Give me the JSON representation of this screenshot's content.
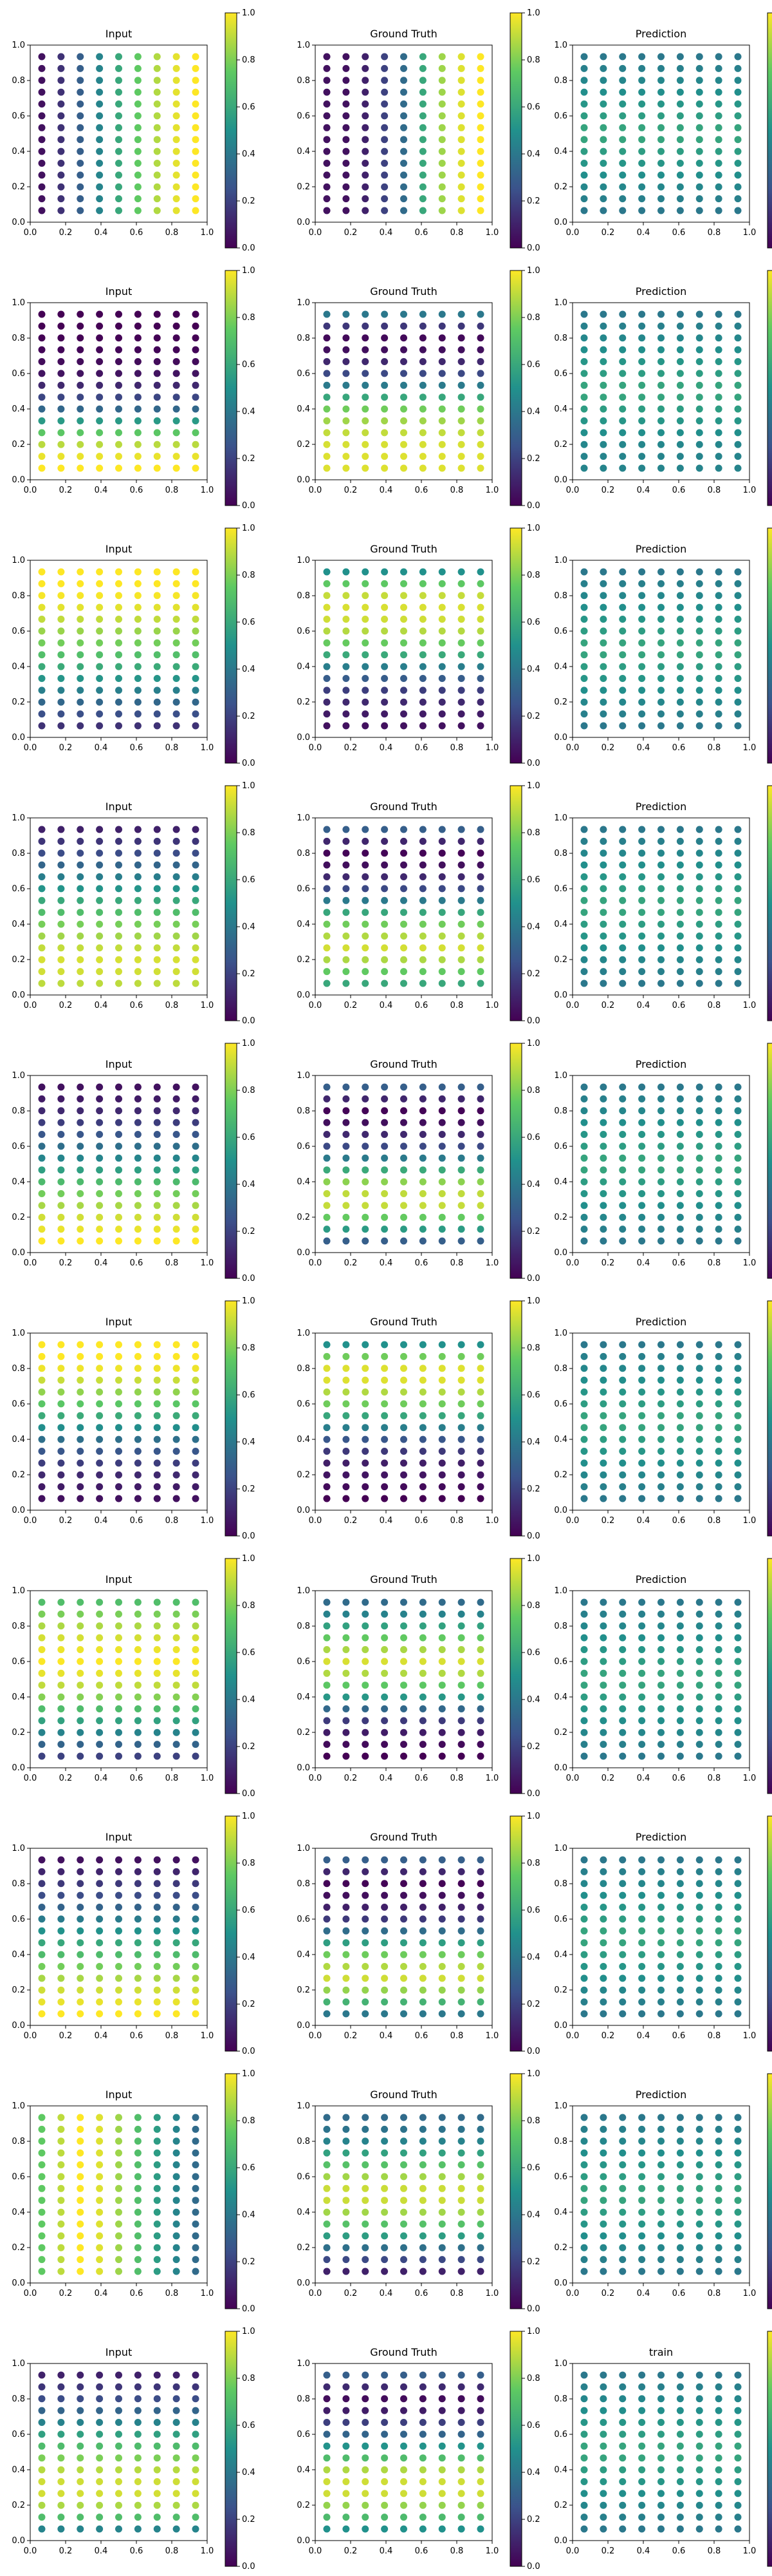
{
  "figure": {
    "rows": 10,
    "columns": 3,
    "colorbar_ticks": [
      "0.0",
      "0.2",
      "0.4",
      "0.6",
      "0.8",
      "1.0"
    ],
    "axis_ticks": [
      "0.0",
      "0.2",
      "0.4",
      "0.6",
      "0.8",
      "1.0"
    ],
    "colormap": [
      "#440154",
      "#3b528b",
      "#21918c",
      "#5ec962",
      "#fde725"
    ]
  },
  "chart_data": [
    {
      "row": 1,
      "panels": [
        {
          "title": "Input",
          "type": "scatter",
          "xlim": [
            0,
            1
          ],
          "ylim": [
            0,
            1
          ],
          "clim": [
            0,
            1
          ],
          "field": {
            "axis": "x",
            "profile": [
              0.05,
              0.15,
              0.3,
              0.45,
              0.6,
              0.75,
              0.88,
              0.96,
              1.0
            ]
          }
        },
        {
          "title": "Ground Truth",
          "type": "scatter",
          "xlim": [
            0,
            1
          ],
          "ylim": [
            0,
            1
          ],
          "clim": [
            0,
            1
          ],
          "field": {
            "axis": "x",
            "profile": [
              0.05,
              0.05,
              0.1,
              0.2,
              0.35,
              0.6,
              0.85,
              0.95,
              1.0
            ]
          }
        },
        {
          "title": "Prediction",
          "type": "scatter",
          "xlim": [
            0,
            1
          ],
          "ylim": [
            0,
            1
          ],
          "clim": [
            0,
            1
          ],
          "field": {
            "axis": "y",
            "profile": [
              0.4,
              0.45,
              0.5,
              0.55,
              0.6,
              0.55,
              0.5,
              0.45,
              0.4
            ]
          }
        }
      ]
    },
    {
      "row": 2,
      "panels": [
        {
          "title": "Input",
          "type": "scatter",
          "xlim": [
            0,
            1
          ],
          "ylim": [
            0,
            1
          ],
          "clim": [
            0,
            1
          ],
          "field": {
            "axis": "y",
            "profile": [
              1.0,
              0.95,
              0.7,
              0.35,
              0.15,
              0.05,
              0.02,
              0.0,
              0.0
            ]
          }
        },
        {
          "title": "Ground Truth",
          "type": "scatter",
          "xlim": [
            0,
            1
          ],
          "ylim": [
            0,
            1
          ],
          "clim": [
            0,
            1
          ],
          "field": {
            "axis": "y",
            "profile": [
              0.95,
              0.95,
              0.9,
              0.8,
              0.5,
              0.2,
              0.05,
              0.02,
              0.4
            ]
          }
        },
        {
          "title": "Prediction",
          "type": "scatter",
          "xlim": [
            0,
            1
          ],
          "ylim": [
            0,
            1
          ],
          "clim": [
            0,
            1
          ],
          "field": {
            "axis": "y",
            "profile": [
              0.45,
              0.45,
              0.5,
              0.55,
              0.6,
              0.55,
              0.5,
              0.45,
              0.4
            ]
          }
        }
      ]
    },
    {
      "row": 3,
      "panels": [
        {
          "title": "Input",
          "type": "scatter",
          "xlim": [
            0,
            1
          ],
          "ylim": [
            0,
            1
          ],
          "clim": [
            0,
            1
          ],
          "field": {
            "axis": "y",
            "profile": [
              0.15,
              0.3,
              0.45,
              0.6,
              0.75,
              0.85,
              0.95,
              1.0,
              1.0
            ]
          }
        },
        {
          "title": "Ground Truth",
          "type": "scatter",
          "xlim": [
            0,
            1
          ],
          "ylim": [
            0,
            1
          ],
          "clim": [
            0,
            1
          ],
          "field": {
            "axis": "y",
            "profile": [
              0.05,
              0.1,
              0.2,
              0.4,
              0.7,
              0.9,
              0.95,
              0.9,
              0.5
            ]
          }
        },
        {
          "title": "Prediction",
          "type": "scatter",
          "xlim": [
            0,
            1
          ],
          "ylim": [
            0,
            1
          ],
          "clim": [
            0,
            1
          ],
          "field": {
            "axis": "y",
            "profile": [
              0.4,
              0.45,
              0.5,
              0.55,
              0.6,
              0.55,
              0.5,
              0.45,
              0.4
            ]
          }
        }
      ]
    },
    {
      "row": 4,
      "panels": [
        {
          "title": "Input",
          "type": "scatter",
          "xlim": [
            0,
            1
          ],
          "ylim": [
            0,
            1
          ],
          "clim": [
            0,
            1
          ],
          "field": {
            "axis": "y",
            "profile": [
              0.9,
              0.95,
              0.9,
              0.8,
              0.65,
              0.5,
              0.35,
              0.2,
              0.1
            ]
          }
        },
        {
          "title": "Ground Truth",
          "type": "scatter",
          "xlim": [
            0,
            1
          ],
          "ylim": [
            0,
            1
          ],
          "clim": [
            0,
            1
          ],
          "field": {
            "axis": "y",
            "profile": [
              0.6,
              0.85,
              0.95,
              0.8,
              0.5,
              0.2,
              0.05,
              0.0,
              0.3
            ]
          }
        },
        {
          "title": "Prediction",
          "type": "scatter",
          "xlim": [
            0,
            1
          ],
          "ylim": [
            0,
            1
          ],
          "clim": [
            0,
            1
          ],
          "field": {
            "axis": "y",
            "profile": [
              0.4,
              0.45,
              0.5,
              0.55,
              0.6,
              0.55,
              0.5,
              0.45,
              0.4
            ]
          }
        }
      ]
    },
    {
      "row": 5,
      "panels": [
        {
          "title": "Input",
          "type": "scatter",
          "xlim": [
            0,
            1
          ],
          "ylim": [
            0,
            1
          ],
          "clim": [
            0,
            1
          ],
          "field": {
            "axis": "y",
            "profile": [
              1.0,
              0.95,
              0.85,
              0.7,
              0.5,
              0.35,
              0.2,
              0.1,
              0.05
            ]
          }
        },
        {
          "title": "Ground Truth",
          "type": "scatter",
          "xlim": [
            0,
            1
          ],
          "ylim": [
            0,
            1
          ],
          "clim": [
            0,
            1
          ],
          "field": {
            "axis": "y",
            "profile": [
              0.3,
              0.7,
              0.95,
              0.85,
              0.5,
              0.2,
              0.05,
              0.0,
              0.3
            ]
          }
        },
        {
          "title": "Prediction",
          "type": "scatter",
          "xlim": [
            0,
            1
          ],
          "ylim": [
            0,
            1
          ],
          "clim": [
            0,
            1
          ],
          "field": {
            "axis": "y",
            "profile": [
              0.4,
              0.45,
              0.5,
              0.55,
              0.6,
              0.55,
              0.5,
              0.45,
              0.4
            ]
          }
        }
      ]
    },
    {
      "row": 6,
      "panels": [
        {
          "title": "Input",
          "type": "scatter",
          "xlim": [
            0,
            1
          ],
          "ylim": [
            0,
            1
          ],
          "clim": [
            0,
            1
          ],
          "field": {
            "axis": "y",
            "profile": [
              0.05,
              0.1,
              0.2,
              0.35,
              0.55,
              0.75,
              0.9,
              1.0,
              1.0
            ]
          }
        },
        {
          "title": "Ground Truth",
          "type": "scatter",
          "xlim": [
            0,
            1
          ],
          "ylim": [
            0,
            1
          ],
          "clim": [
            0,
            1
          ],
          "field": {
            "axis": "y",
            "profile": [
              0.0,
              0.05,
              0.1,
              0.25,
              0.5,
              0.8,
              0.95,
              0.95,
              0.5
            ]
          }
        },
        {
          "title": "Prediction",
          "type": "scatter",
          "xlim": [
            0,
            1
          ],
          "ylim": [
            0,
            1
          ],
          "clim": [
            0,
            1
          ],
          "field": {
            "axis": "y",
            "profile": [
              0.4,
              0.45,
              0.5,
              0.55,
              0.6,
              0.55,
              0.5,
              0.45,
              0.4
            ]
          }
        }
      ]
    },
    {
      "row": 7,
      "panels": [
        {
          "title": "Input",
          "type": "scatter",
          "xlim": [
            0,
            1
          ],
          "ylim": [
            0,
            1
          ],
          "clim": [
            0,
            1
          ],
          "field": {
            "axis": "y",
            "profile": [
              0.2,
              0.4,
              0.6,
              0.8,
              0.95,
              1.0,
              0.95,
              0.85,
              0.7
            ]
          }
        },
        {
          "title": "Ground Truth",
          "type": "scatter",
          "xlim": [
            0,
            1
          ],
          "ylim": [
            0,
            1
          ],
          "clim": [
            0,
            1
          ],
          "field": {
            "axis": "y",
            "profile": [
              0.0,
              0.05,
              0.2,
              0.5,
              0.85,
              0.95,
              0.8,
              0.5,
              0.35
            ]
          }
        },
        {
          "title": "Prediction",
          "type": "scatter",
          "xlim": [
            0,
            1
          ],
          "ylim": [
            0,
            1
          ],
          "clim": [
            0,
            1
          ],
          "field": {
            "axis": "y",
            "profile": [
              0.4,
              0.45,
              0.5,
              0.55,
              0.6,
              0.55,
              0.5,
              0.45,
              0.4
            ]
          }
        }
      ]
    },
    {
      "row": 8,
      "panels": [
        {
          "title": "Input",
          "type": "scatter",
          "xlim": [
            0,
            1
          ],
          "ylim": [
            0,
            1
          ],
          "clim": [
            0,
            1
          ],
          "field": {
            "axis": "y",
            "profile": [
              1.0,
              0.95,
              0.85,
              0.7,
              0.55,
              0.4,
              0.25,
              0.15,
              0.05
            ]
          }
        },
        {
          "title": "Ground Truth",
          "type": "scatter",
          "xlim": [
            0,
            1
          ],
          "ylim": [
            0,
            1
          ],
          "clim": [
            0,
            1
          ],
          "field": {
            "axis": "y",
            "profile": [
              0.4,
              0.8,
              0.95,
              0.8,
              0.45,
              0.15,
              0.05,
              0.0,
              0.3
            ]
          }
        },
        {
          "title": "Prediction",
          "type": "scatter",
          "xlim": [
            0,
            1
          ],
          "ylim": [
            0,
            1
          ],
          "clim": [
            0,
            1
          ],
          "field": {
            "axis": "y",
            "profile": [
              0.4,
              0.45,
              0.5,
              0.55,
              0.6,
              0.55,
              0.5,
              0.45,
              0.4
            ]
          }
        }
      ]
    },
    {
      "row": 9,
      "panels": [
        {
          "title": "Input",
          "type": "scatter",
          "xlim": [
            0,
            1
          ],
          "ylim": [
            0,
            1
          ],
          "clim": [
            0,
            1
          ],
          "field": {
            "axis": "x",
            "profile": [
              0.75,
              0.9,
              1.0,
              0.95,
              0.85,
              0.7,
              0.55,
              0.45,
              0.35
            ]
          }
        },
        {
          "title": "Ground Truth",
          "type": "scatter",
          "xlim": [
            0,
            1
          ],
          "ylim": [
            0,
            1
          ],
          "clim": [
            0,
            1
          ],
          "field": {
            "axis": "y",
            "profile": [
              0.1,
              0.3,
              0.6,
              0.85,
              0.95,
              0.85,
              0.6,
              0.4,
              0.35
            ]
          }
        },
        {
          "title": "Prediction",
          "type": "scatter",
          "xlim": [
            0,
            1
          ],
          "ylim": [
            0,
            1
          ],
          "clim": [
            0,
            1
          ],
          "field": {
            "axis": "y",
            "profile": [
              0.4,
              0.45,
              0.5,
              0.55,
              0.6,
              0.55,
              0.5,
              0.45,
              0.4
            ]
          }
        }
      ]
    },
    {
      "row": 10,
      "panels": [
        {
          "title": "Input",
          "type": "scatter",
          "xlim": [
            0,
            1
          ],
          "ylim": [
            0,
            1
          ],
          "clim": [
            0,
            1
          ],
          "field": {
            "axis": "y",
            "profile": [
              0.45,
              0.85,
              0.95,
              0.9,
              0.75,
              0.55,
              0.35,
              0.2,
              0.1
            ]
          }
        },
        {
          "title": "Ground Truth",
          "type": "scatter",
          "xlim": [
            0,
            1
          ],
          "ylim": [
            0,
            1
          ],
          "clim": [
            0,
            1
          ],
          "field": {
            "axis": "y",
            "profile": [
              0.5,
              0.8,
              0.95,
              0.9,
              0.6,
              0.3,
              0.1,
              0.02,
              0.3
            ]
          }
        },
        {
          "title": "train",
          "type": "scatter",
          "xlim": [
            0,
            1
          ],
          "ylim": [
            0,
            1
          ],
          "clim": [
            0,
            1
          ],
          "field": {
            "axis": "y",
            "profile": [
              0.4,
              0.45,
              0.5,
              0.55,
              0.6,
              0.55,
              0.5,
              0.45,
              0.4
            ]
          }
        }
      ]
    }
  ]
}
